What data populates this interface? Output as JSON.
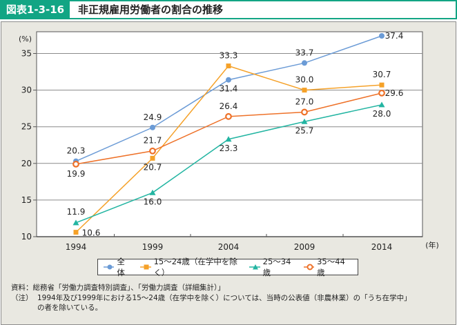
{
  "header": {
    "figure_label": "図表1-3-16",
    "title": "非正規雇用労働者の割合の推移"
  },
  "chart_data": {
    "type": "line",
    "title": "非正規雇用労働者の割合の推移",
    "xlabel": "(年)",
    "ylabel": "(%)",
    "categories": [
      "1994",
      "1999",
      "2004",
      "2009",
      "2014"
    ],
    "ylim": [
      10,
      37.5
    ],
    "yticks": [
      10,
      15,
      20,
      25,
      30,
      35
    ],
    "grid": true,
    "legend_position": "bottom",
    "series": [
      {
        "name": "全体",
        "marker": "circle-filled",
        "color": "#6b9bd6",
        "values": [
          20.3,
          24.9,
          31.4,
          33.7,
          37.4
        ]
      },
      {
        "name": "15～24歳（在学中を除く）",
        "marker": "square",
        "color": "#f5a128",
        "values": [
          10.6,
          20.7,
          33.3,
          30.0,
          30.7
        ]
      },
      {
        "name": "25～34歳",
        "marker": "triangle",
        "color": "#23b5a2",
        "values": [
          11.9,
          16.0,
          23.3,
          25.7,
          28.0
        ]
      },
      {
        "name": "35～44歳",
        "marker": "circle-open",
        "color": "#ee7128",
        "values": [
          19.9,
          21.7,
          26.4,
          27.0,
          29.6
        ]
      }
    ]
  },
  "notes": {
    "source_label": "資料：",
    "source_text": "総務省「労働力調査特別調査」、「労働力調査（詳細集計）」",
    "note_label": "（注）",
    "note_text_1": "1994年及び1999年における15～24歳（在学中を除く）については、当時の公表値（非農林業）の「うち在学中」",
    "note_text_2": "の者を除いている。"
  }
}
